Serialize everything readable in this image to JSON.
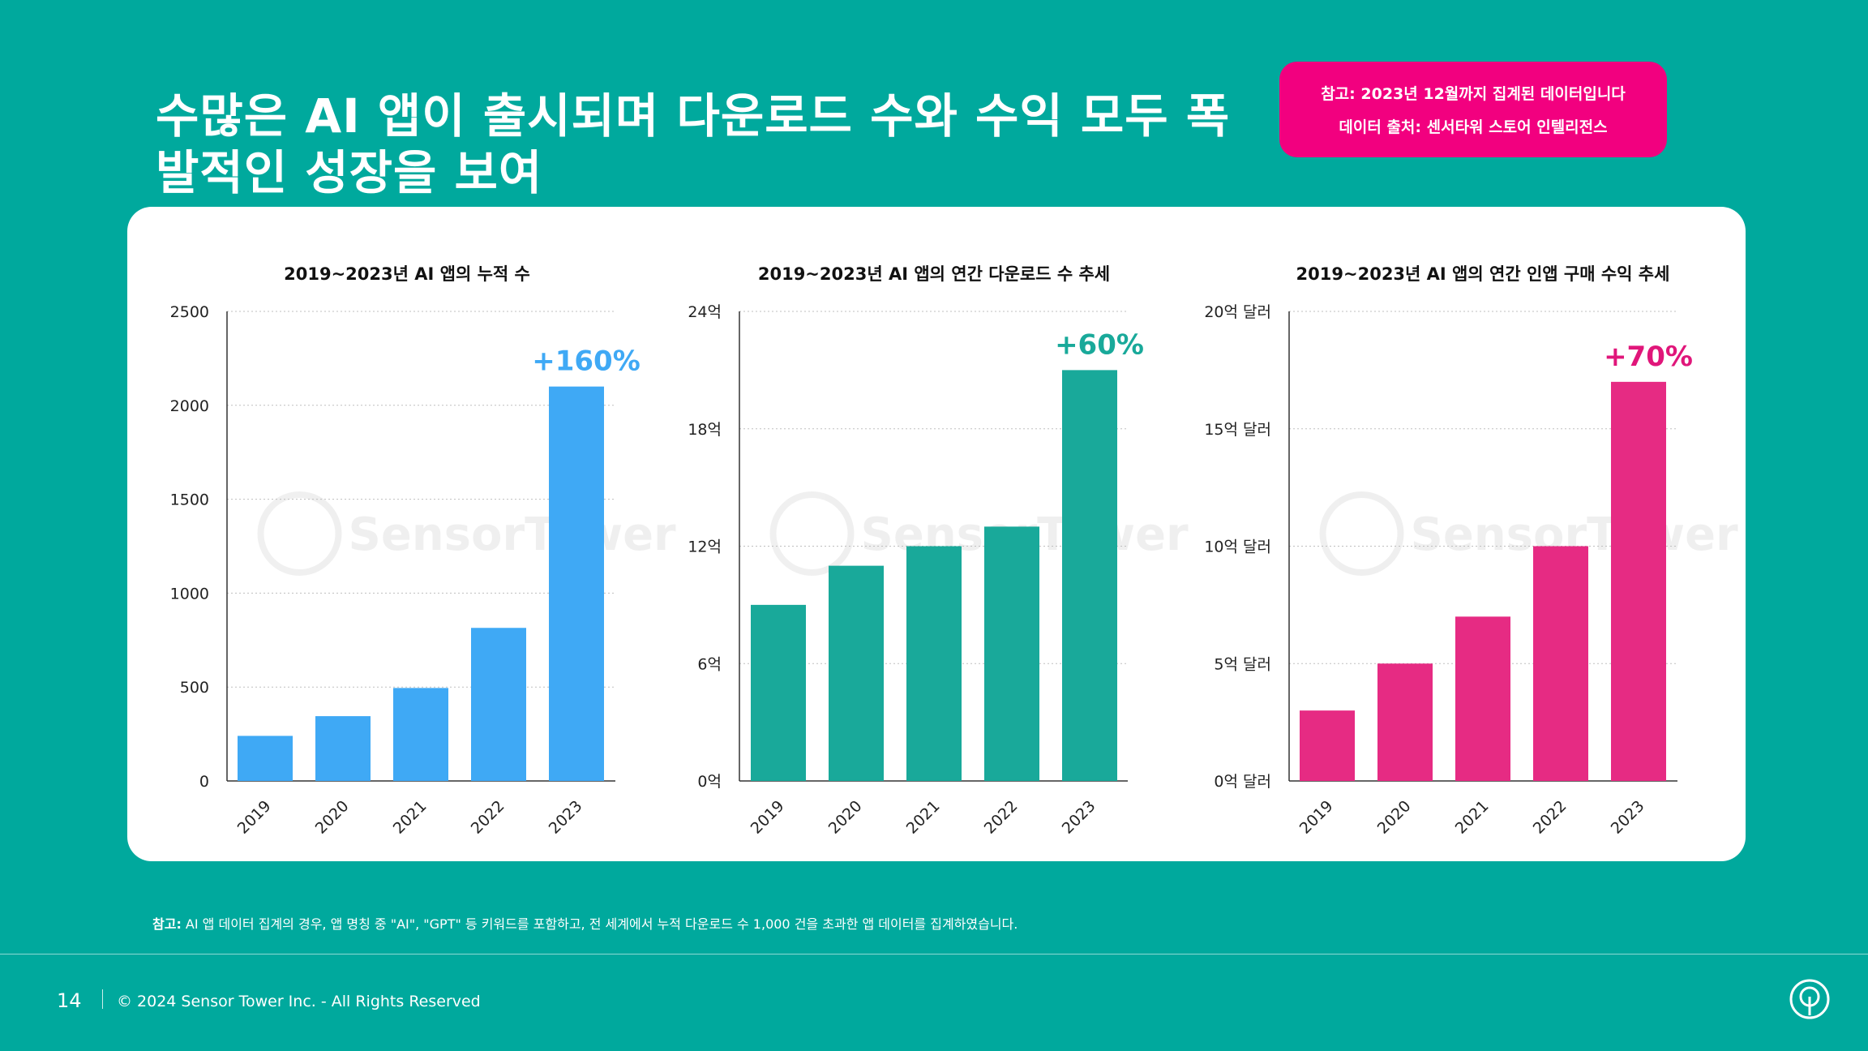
{
  "title": {
    "line1": "수많은 AI 앱이 출시되며 다운로드 수와 수익 모두 폭",
    "line2": "발적인 성장을 보여"
  },
  "note": {
    "line1": "참고: 2023년 12월까지 집계된 데이터입니다",
    "line2": "데이터 출처: 센서타워 스토어 인텔리전스"
  },
  "watermark": "SensorTower",
  "chart_data": [
    {
      "type": "bar",
      "title": "2019~2023년 AI 앱의 누적 수",
      "categories": [
        "2019",
        "2020",
        "2021",
        "2022",
        "2023"
      ],
      "values": [
        240,
        345,
        495,
        815,
        2100
      ],
      "ylim": [
        0,
        2500
      ],
      "yticks": [
        0,
        500,
        1000,
        1500,
        2000,
        2500
      ],
      "ytick_labels": [
        "0",
        "500",
        "1000",
        "1500",
        "2000",
        "2500"
      ],
      "color": "#3fa9f5",
      "annotation": "+160%",
      "annotation_color": "#3fa9f5",
      "grid": true
    },
    {
      "type": "bar",
      "title": "2019~2023년 AI 앱의 연간 다운로드  수 추세",
      "categories": [
        "2019",
        "2020",
        "2021",
        "2022",
        "2023"
      ],
      "values": [
        9,
        11,
        12,
        13,
        21
      ],
      "ylim": [
        0,
        24
      ],
      "yticks": [
        0,
        6,
        12,
        18,
        24
      ],
      "ytick_labels": [
        "0억",
        "6억",
        "12억",
        "18억",
        "24억"
      ],
      "color": "#19a99a",
      "annotation": "+60%",
      "annotation_color": "#19a99a",
      "grid": true
    },
    {
      "type": "bar",
      "title": "2019~2023년 AI 앱의 연간 인앱 구매 수익 추세",
      "categories": [
        "2019",
        "2020",
        "2021",
        "2022",
        "2023"
      ],
      "values": [
        3,
        5,
        7,
        10,
        17
      ],
      "ylim": [
        0,
        20
      ],
      "yticks": [
        0,
        5,
        10,
        15,
        20
      ],
      "ytick_labels": [
        "0억 달러",
        "5억 달러",
        "10억 달러",
        "15억 달러",
        "20억 달러"
      ],
      "color": "#e62b83",
      "annotation": "+70%",
      "annotation_color": "#e0167a",
      "grid": true
    }
  ],
  "footnote": {
    "label": "참고:",
    "text": " AI 앱 데이터 집계의 경우, 앱 명칭 중 \"AI\", \"GPT\" 등 키워드를 포함하고, 전 세계에서 누적 다운로드 수 1,000 건을 초과한 앱 데이터를 집계하였습니다."
  },
  "footer": {
    "page": "14",
    "copyright": "© 2024 Sensor Tower Inc. - All Rights Reserved"
  }
}
